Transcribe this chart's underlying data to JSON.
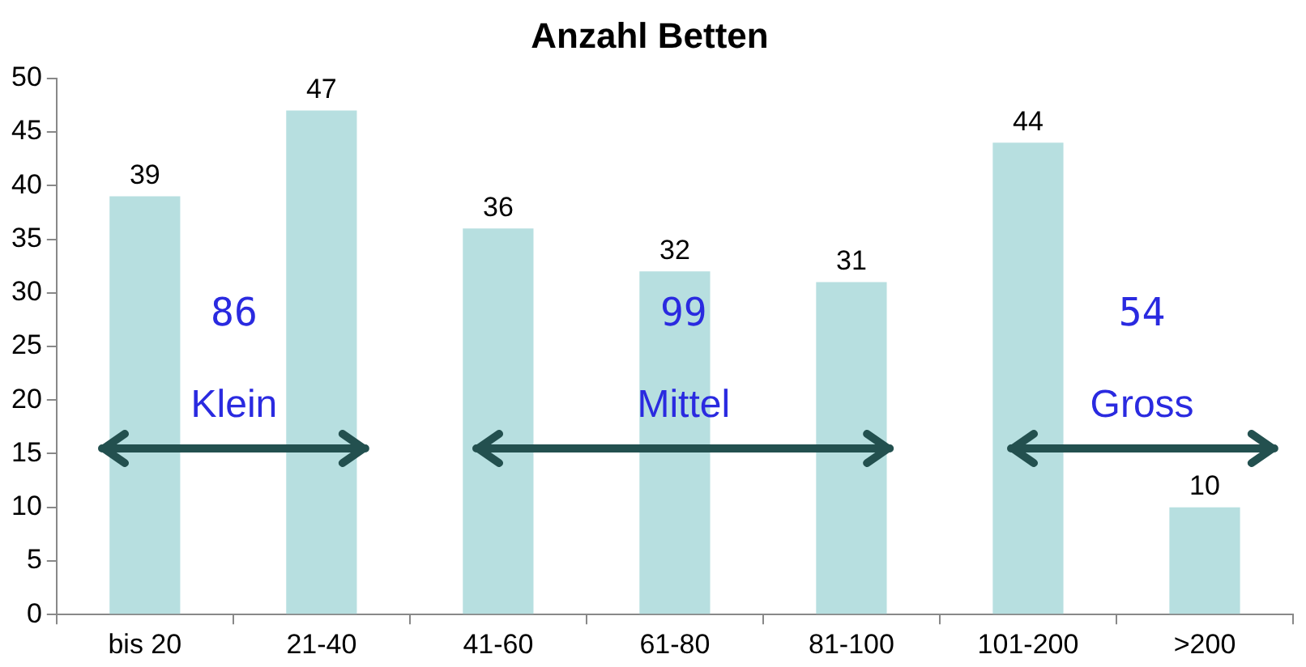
{
  "chart_data": {
    "type": "bar",
    "title": "Anzahl Betten",
    "categories": [
      "bis 20",
      "21-40",
      "41-60",
      "61-80",
      "81-100",
      "101-200",
      ">200"
    ],
    "values": [
      39,
      47,
      36,
      32,
      31,
      44,
      10
    ],
    "color": "#b7dfe0",
    "ylim": [
      0,
      50
    ],
    "yticks": [
      0,
      5,
      10,
      15,
      20,
      25,
      30,
      35,
      40,
      45,
      50
    ],
    "grid": false,
    "legend": false,
    "data_labels": true,
    "annotations": [
      "86",
      "Klein",
      "99",
      "Mittel",
      "54",
      "Gross"
    ]
  }
}
